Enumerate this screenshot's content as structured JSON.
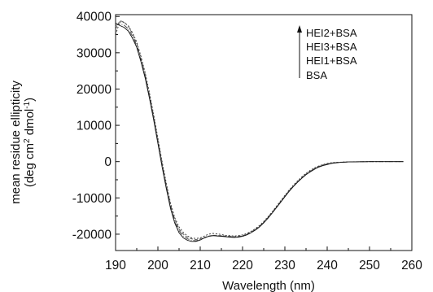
{
  "chart_data": {
    "type": "line",
    "title": "",
    "xlabel": "Wavelength (nm)",
    "ylabel": "mean residue ellipticity",
    "ylabel_units": {
      "pre": "(deg cm",
      "sup1": "2",
      "mid": " dmol",
      "sup2": "-1",
      "post": ")"
    },
    "xlim": [
      190,
      260
    ],
    "ylim": [
      -24500,
      40500
    ],
    "xticks": [
      190,
      200,
      210,
      220,
      230,
      240,
      250,
      260
    ],
    "yticks": [
      -20000,
      -10000,
      0,
      10000,
      20000,
      30000,
      40000
    ],
    "grid": false,
    "legend_position": "top-right",
    "legend_arrow": true,
    "legend_order": [
      "HEI2+BSA",
      "HEI3+BSA",
      "HEI1+BSA",
      "BSA"
    ],
    "series": [
      {
        "name": "HEI2+BSA",
        "x": [
          190,
          191,
          192,
          193,
          194,
          195,
          196,
          197,
          198,
          199,
          200,
          201,
          202,
          203,
          204,
          205,
          206,
          207,
          208,
          209,
          210,
          211,
          212,
          213,
          214,
          215,
          216,
          217,
          218,
          219,
          220,
          221,
          222,
          223,
          224,
          225,
          226,
          227,
          228,
          229,
          230,
          231,
          232,
          233,
          234,
          235,
          236,
          237,
          238,
          239,
          240,
          241,
          242,
          243,
          244,
          245,
          246,
          247,
          248,
          249,
          250,
          252,
          254,
          256,
          258
        ],
        "y": [
          35000,
          38500,
          38300,
          37500,
          35500,
          33000,
          29000,
          24500,
          19000,
          13000,
          6500,
          0,
          -6000,
          -11500,
          -15500,
          -18000,
          -19500,
          -20500,
          -21000,
          -21200,
          -21000,
          -20500,
          -20000,
          -19800,
          -19900,
          -20100,
          -20300,
          -20400,
          -20500,
          -20400,
          -20200,
          -19800,
          -19200,
          -18500,
          -17600,
          -16500,
          -15200,
          -13800,
          -12300,
          -10800,
          -9300,
          -7800,
          -6500,
          -5300,
          -4200,
          -3200,
          -2400,
          -1700,
          -1200,
          -800,
          -500,
          -300,
          -200,
          -150,
          -100,
          -80,
          -50,
          -30,
          -20,
          -10,
          0,
          0,
          0,
          0,
          0
        ]
      },
      {
        "name": "HEI3+BSA",
        "x": [
          190,
          191,
          192,
          193,
          194,
          195,
          196,
          197,
          198,
          199,
          200,
          201,
          202,
          203,
          204,
          205,
          206,
          207,
          208,
          209,
          210,
          211,
          212,
          213,
          214,
          215,
          216,
          217,
          218,
          219,
          220,
          221,
          222,
          223,
          224,
          225,
          226,
          227,
          228,
          229,
          230,
          231,
          232,
          233,
          234,
          235,
          236,
          237,
          238,
          239,
          240,
          241,
          242,
          243,
          244,
          245,
          246,
          247,
          248,
          249,
          250,
          252,
          254,
          256,
          258
        ],
        "y": [
          36500,
          38800,
          38500,
          37300,
          35200,
          32500,
          28500,
          24000,
          18500,
          12500,
          6000,
          -500,
          -6500,
          -12000,
          -16000,
          -18600,
          -20000,
          -20900,
          -21300,
          -21500,
          -21300,
          -20900,
          -20500,
          -20300,
          -20300,
          -20400,
          -20500,
          -20600,
          -20700,
          -20600,
          -20400,
          -20000,
          -19400,
          -18700,
          -17800,
          -16700,
          -15400,
          -14000,
          -12500,
          -11000,
          -9500,
          -8000,
          -6700,
          -5500,
          -4400,
          -3400,
          -2600,
          -1900,
          -1300,
          -900,
          -600,
          -400,
          -250,
          -180,
          -120,
          -90,
          -60,
          -40,
          -25,
          -15,
          0,
          0,
          0,
          0,
          0
        ]
      },
      {
        "name": "HEI1+BSA",
        "x": [
          190,
          191,
          192,
          193,
          194,
          195,
          196,
          197,
          198,
          199,
          200,
          201,
          202,
          203,
          204,
          205,
          206,
          207,
          208,
          209,
          210,
          211,
          212,
          213,
          214,
          215,
          216,
          217,
          218,
          219,
          220,
          221,
          222,
          223,
          224,
          225,
          226,
          227,
          228,
          229,
          230,
          231,
          232,
          233,
          234,
          235,
          236,
          237,
          238,
          239,
          240,
          241,
          242,
          243,
          244,
          245,
          246,
          247,
          248,
          249,
          250,
          252,
          254,
          256,
          258
        ],
        "y": [
          37500,
          38000,
          37600,
          36600,
          34600,
          32000,
          28000,
          23500,
          18000,
          12000,
          5500,
          -1000,
          -7000,
          -12500,
          -16500,
          -19000,
          -20500,
          -21300,
          -21700,
          -21800,
          -21500,
          -21000,
          -20600,
          -20400,
          -20400,
          -20500,
          -20600,
          -20700,
          -20800,
          -20700,
          -20500,
          -20100,
          -19500,
          -18800,
          -17900,
          -16800,
          -15500,
          -14100,
          -12600,
          -11100,
          -9600,
          -8100,
          -6800,
          -5600,
          -4500,
          -3500,
          -2700,
          -2000,
          -1400,
          -1000,
          -700,
          -450,
          -300,
          -200,
          -130,
          -90,
          -60,
          -40,
          -25,
          -15,
          0,
          0,
          0,
          0,
          0
        ]
      },
      {
        "name": "BSA",
        "x": [
          190,
          191,
          192,
          193,
          194,
          195,
          196,
          197,
          198,
          199,
          200,
          201,
          202,
          203,
          204,
          205,
          206,
          207,
          208,
          209,
          210,
          211,
          212,
          213,
          214,
          215,
          216,
          217,
          218,
          219,
          220,
          221,
          222,
          223,
          224,
          225,
          226,
          227,
          228,
          229,
          230,
          231,
          232,
          233,
          234,
          235,
          236,
          237,
          238,
          239,
          240,
          241,
          242,
          243,
          244,
          245,
          246,
          247,
          248,
          249,
          250,
          252,
          254,
          256,
          258
        ],
        "y": [
          38200,
          37500,
          37000,
          36000,
          34000,
          31500,
          27500,
          23000,
          17500,
          11500,
          5000,
          -1500,
          -7500,
          -13000,
          -17000,
          -19600,
          -21000,
          -21700,
          -22000,
          -22000,
          -21600,
          -21000,
          -20600,
          -20400,
          -20500,
          -20600,
          -20700,
          -20800,
          -20900,
          -20800,
          -20600,
          -20200,
          -19600,
          -18900,
          -18000,
          -16900,
          -15600,
          -14200,
          -12700,
          -11200,
          -9700,
          -8200,
          -6900,
          -5700,
          -4600,
          -3600,
          -2800,
          -2100,
          -1500,
          -1100,
          -800,
          -500,
          -350,
          -230,
          -150,
          -100,
          -70,
          -45,
          -30,
          -15,
          0,
          0,
          0,
          0,
          0
        ]
      }
    ]
  }
}
